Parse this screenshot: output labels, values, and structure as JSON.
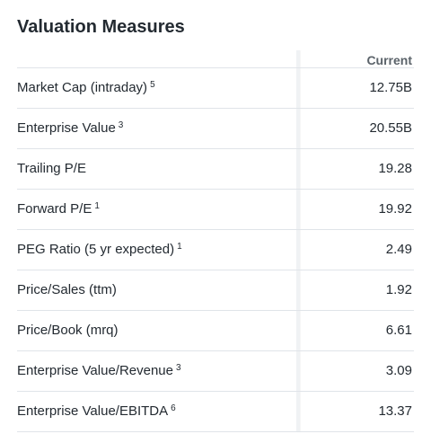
{
  "section": {
    "title": "Valuation Measures",
    "column_header": "Current"
  },
  "rows": [
    {
      "label": "Market Cap (intraday)",
      "footnote": "5",
      "value": "12.75B"
    },
    {
      "label": "Enterprise Value",
      "footnote": "3",
      "value": "20.55B"
    },
    {
      "label": "Trailing P/E",
      "footnote": "",
      "value": "19.28"
    },
    {
      "label": "Forward P/E",
      "footnote": "1",
      "value": "19.92"
    },
    {
      "label": "PEG Ratio (5 yr expected)",
      "footnote": "1",
      "value": "2.49"
    },
    {
      "label": "Price/Sales (ttm)",
      "footnote": "",
      "value": "1.92"
    },
    {
      "label": "Price/Book (mrq)",
      "footnote": "",
      "value": "6.61"
    },
    {
      "label": "Enterprise Value/Revenue",
      "footnote": "3",
      "value": "3.09"
    },
    {
      "label": "Enterprise Value/EBITDA",
      "footnote": "6",
      "value": "13.37"
    }
  ]
}
